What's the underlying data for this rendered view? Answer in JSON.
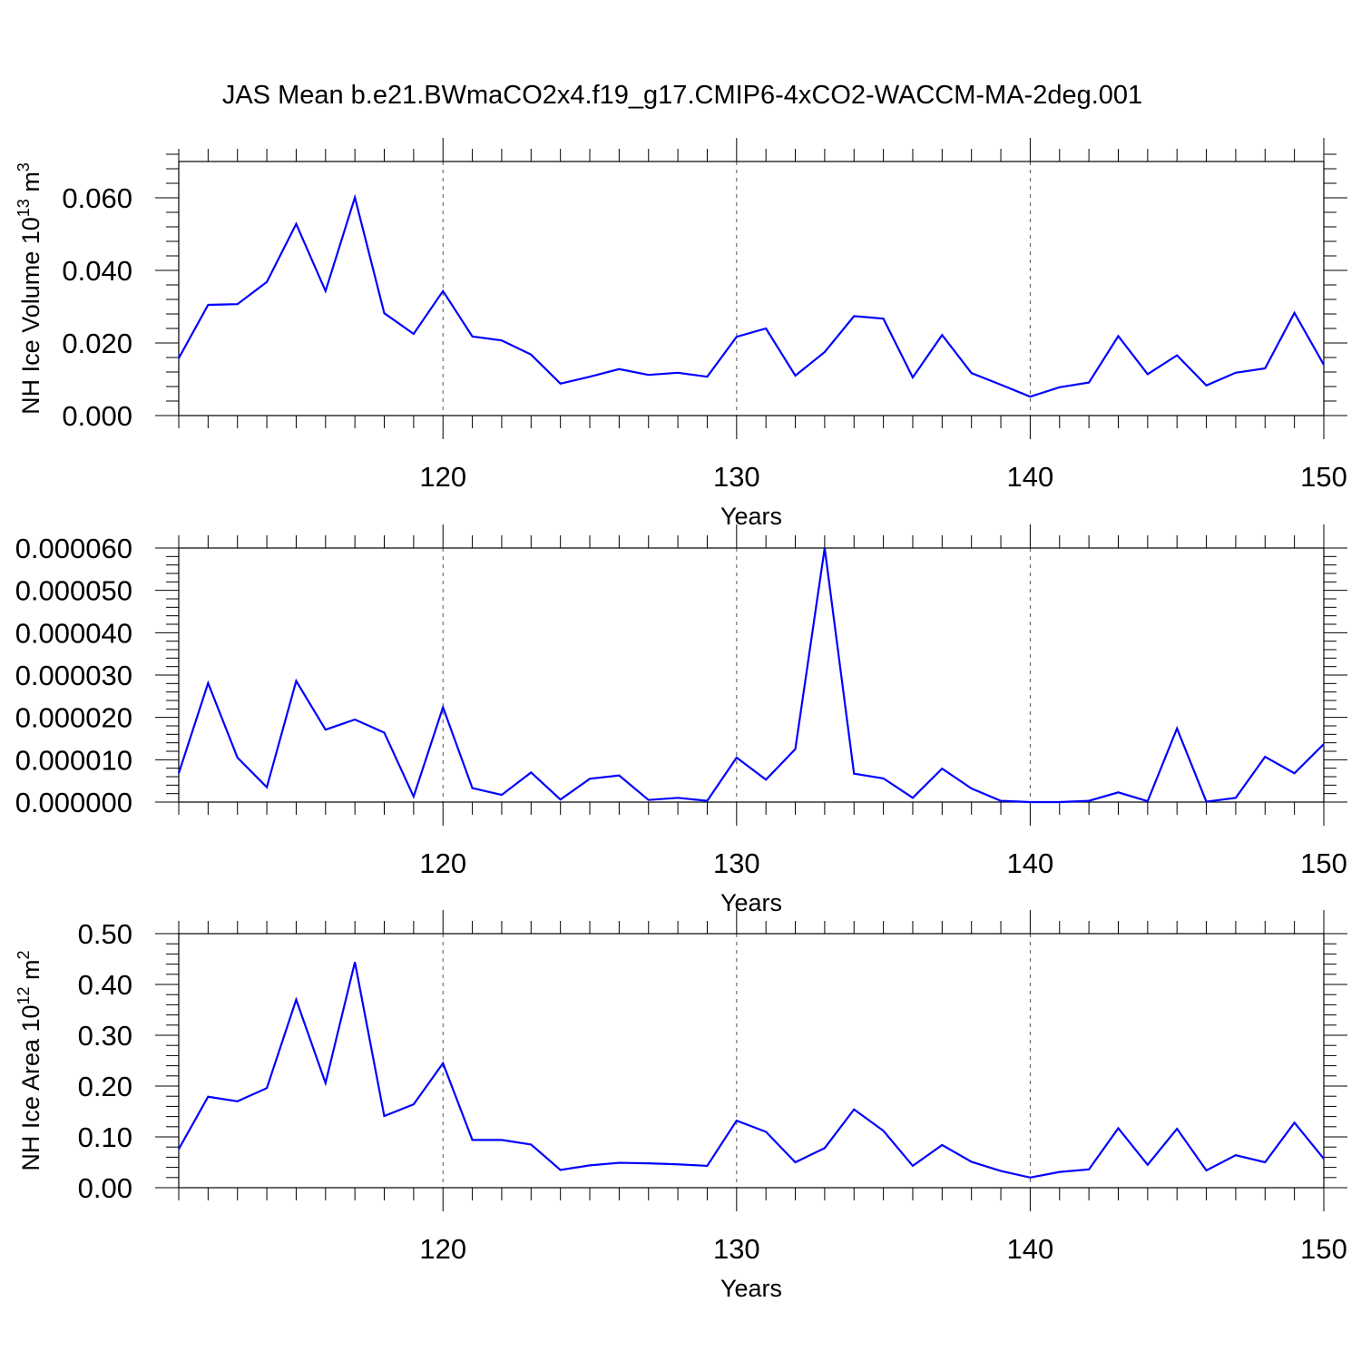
{
  "title": "JAS Mean b.e21.BWmaCO2x4.f19_g17.CMIP6-4xCO2-WACCM-MA-2deg.001",
  "chart_data": [
    {
      "type": "line",
      "ylabel_main": "NH Ice Volume 10",
      "ylabel_exp": "13",
      "ylabel_unit": " m",
      "ylabel_unit_exp": "3",
      "xlabel": "Years",
      "xlim": [
        111,
        150
      ],
      "ylim": [
        0,
        0.07
      ],
      "yticks": [
        0,
        0.02,
        0.04,
        0.06
      ],
      "yticklabels": [
        "0.000",
        "0.020",
        "0.040",
        "0.060"
      ],
      "xticks": [
        120,
        130,
        140,
        150
      ],
      "xticklabels": [
        "120",
        "130",
        "140",
        "150"
      ],
      "grid_x": [
        120,
        130,
        140
      ],
      "color": "#0000ff",
      "x": [
        111,
        112,
        113,
        114,
        115,
        116,
        117,
        118,
        119,
        120,
        121,
        122,
        123,
        124,
        125,
        126,
        127,
        128,
        129,
        130,
        131,
        132,
        133,
        134,
        135,
        136,
        137,
        138,
        139,
        140,
        141,
        142,
        143,
        144,
        145,
        146,
        147,
        148,
        149,
        150
      ],
      "values": [
        0.0158,
        0.0305,
        0.0307,
        0.0368,
        0.0528,
        0.0343,
        0.0601,
        0.0282,
        0.0225,
        0.0343,
        0.0218,
        0.0207,
        0.0168,
        0.0088,
        0.0107,
        0.0128,
        0.0112,
        0.0118,
        0.0107,
        0.0217,
        0.024,
        0.011,
        0.0175,
        0.0274,
        0.0267,
        0.0105,
        0.0222,
        0.0117,
        0.0085,
        0.0052,
        0.0078,
        0.0091,
        0.0219,
        0.0114,
        0.0166,
        0.0083,
        0.0118,
        0.013,
        0.0283,
        0.014
      ]
    },
    {
      "type": "line",
      "ylabel_main": "",
      "ylabel_exp": "",
      "ylabel_unit": "",
      "ylabel_unit_exp": "",
      "xlabel": "Years",
      "xlim": [
        111,
        150
      ],
      "ylim": [
        0,
        6e-05
      ],
      "yticks": [
        0,
        1e-05,
        2e-05,
        3e-05,
        4e-05,
        5e-05,
        6e-05
      ],
      "yticklabels": [
        "0.000000",
        "0.000010",
        "0.000020",
        "0.000030",
        "0.000040",
        "0.000050",
        "0.000060"
      ],
      "xticks": [
        120,
        130,
        140,
        150
      ],
      "xticklabels": [
        "120",
        "130",
        "140",
        "150"
      ],
      "grid_x": [
        120,
        130,
        140
      ],
      "color": "#0000ff",
      "x": [
        111,
        112,
        113,
        114,
        115,
        116,
        117,
        118,
        119,
        120,
        121,
        122,
        123,
        124,
        125,
        126,
        127,
        128,
        129,
        130,
        131,
        132,
        133,
        134,
        135,
        136,
        137,
        138,
        139,
        140,
        141,
        142,
        143,
        144,
        145,
        146,
        147,
        148,
        149,
        150
      ],
      "values": [
        6.8e-06,
        2.81e-05,
        1.05e-05,
        3.5e-06,
        2.86e-05,
        1.71e-05,
        1.95e-05,
        1.64e-05,
        1.3e-06,
        2.24e-05,
        3.3e-06,
        1.7e-06,
        7e-06,
        6e-07,
        5.5e-06,
        6.3e-06,
        5e-07,
        1e-06,
        3e-07,
        1.05e-05,
        5.3e-06,
        1.25e-05,
        6e-05,
        6.7e-06,
        5.6e-06,
        1e-06,
        7.9e-06,
        3.2e-06,
        3e-07,
        0.0,
        0.0,
        3e-07,
        2.3e-06,
        2e-07,
        1.74e-05,
        1e-07,
        1e-06,
        1.07e-05,
        6.8e-06,
        1.37e-05
      ]
    },
    {
      "type": "line",
      "ylabel_main": "NH Ice Area 10",
      "ylabel_exp": "12",
      "ylabel_unit": " m",
      "ylabel_unit_exp": "2",
      "xlabel": "Years",
      "xlim": [
        111,
        150
      ],
      "ylim": [
        0,
        0.5
      ],
      "yticks": [
        0,
        0.1,
        0.2,
        0.3,
        0.4,
        0.5
      ],
      "yticklabels": [
        "0.00",
        "0.10",
        "0.20",
        "0.30",
        "0.40",
        "0.50"
      ],
      "xticks": [
        120,
        130,
        140,
        150
      ],
      "xticklabels": [
        "120",
        "130",
        "140",
        "150"
      ],
      "grid_x": [
        120,
        130,
        140
      ],
      "color": "#0000ff",
      "x": [
        111,
        112,
        113,
        114,
        115,
        116,
        117,
        118,
        119,
        120,
        121,
        122,
        123,
        124,
        125,
        126,
        127,
        128,
        129,
        130,
        131,
        132,
        133,
        134,
        135,
        136,
        137,
        138,
        139,
        140,
        141,
        142,
        143,
        144,
        145,
        146,
        147,
        148,
        149,
        150
      ],
      "values": [
        0.076,
        0.179,
        0.17,
        0.196,
        0.37,
        0.206,
        0.444,
        0.141,
        0.164,
        0.245,
        0.094,
        0.094,
        0.085,
        0.035,
        0.044,
        0.049,
        0.048,
        0.046,
        0.043,
        0.132,
        0.11,
        0.05,
        0.078,
        0.154,
        0.112,
        0.043,
        0.084,
        0.051,
        0.033,
        0.02,
        0.031,
        0.036,
        0.117,
        0.045,
        0.116,
        0.034,
        0.064,
        0.05,
        0.128,
        0.057
      ]
    }
  ]
}
